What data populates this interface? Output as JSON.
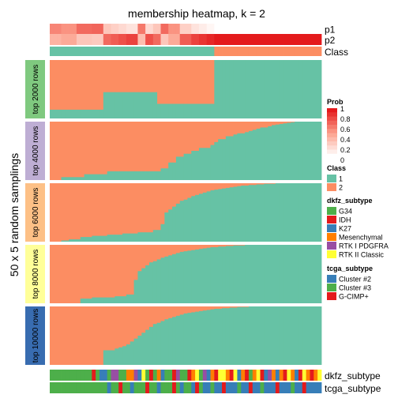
{
  "chart_data": {
    "type": "heatmap",
    "title": "membership heatmap, k = 2",
    "ylabel": "50 x 5 random samplings",
    "n_samples": 71,
    "p1": [
      0.6,
      0.6,
      0.6,
      0.55,
      0.55,
      0.55,
      0.55,
      0.7,
      0.7,
      0.7,
      0.7,
      0.72,
      0.72,
      0.72,
      0.3,
      0.3,
      0.25,
      0.25,
      0.2,
      0.2,
      0.15,
      0.15,
      0.15,
      0.65,
      0.65,
      0.2,
      0.2,
      0.3,
      0.3,
      0.7,
      0.7,
      0.55,
      0.55,
      0.55,
      0.25,
      0.25,
      0.25,
      0.15,
      0.15,
      0.1,
      0.1,
      0.05,
      0.05,
      0.0,
      0.0,
      0.0,
      0.0,
      0.0,
      0.0,
      0.0,
      0.0,
      0.0,
      0.0,
      0.0,
      0.0,
      0.0,
      0.0,
      0.0,
      0.0,
      0.0,
      0.0,
      0.0,
      0.0,
      0.0,
      0.0,
      0.0,
      0.0,
      0.0,
      0.0,
      0.0,
      0.0
    ],
    "p2": [
      0.4,
      0.4,
      0.4,
      0.45,
      0.45,
      0.45,
      0.45,
      0.3,
      0.3,
      0.3,
      0.3,
      0.28,
      0.28,
      0.28,
      0.7,
      0.7,
      0.75,
      0.75,
      0.8,
      0.8,
      0.85,
      0.85,
      0.85,
      0.35,
      0.35,
      0.8,
      0.8,
      0.7,
      0.7,
      0.3,
      0.3,
      0.45,
      0.45,
      0.45,
      0.75,
      0.75,
      0.75,
      0.85,
      0.85,
      0.9,
      0.9,
      0.95,
      0.95,
      1.0,
      1.0,
      1.0,
      1.0,
      1.0,
      1.0,
      1.0,
      1.0,
      1.0,
      1.0,
      1.0,
      1.0,
      1.0,
      1.0,
      1.0,
      1.0,
      1.0,
      1.0,
      1.0,
      1.0,
      1.0,
      1.0,
      1.0,
      1.0,
      1.0,
      1.0,
      1.0,
      1.0
    ],
    "class_split": 43,
    "row_labels": {
      "p1": "p1",
      "p2": "p2",
      "class": "Class"
    },
    "panels": [
      {
        "label": "top 2000 rows",
        "color": "#7fc97f",
        "boundary": [
          0.15,
          0.15,
          0.15,
          0.15,
          0.15,
          0.15,
          0.15,
          0.15,
          0.15,
          0.15,
          0.15,
          0.15,
          0.15,
          0.15,
          0.45,
          0.45,
          0.45,
          0.45,
          0.45,
          0.45,
          0.45,
          0.45,
          0.45,
          0.45,
          0.45,
          0.45,
          0.45,
          0.45,
          0.25,
          0.25,
          0.25,
          0.25,
          0.25,
          0.25,
          0.25,
          0.25,
          0.25,
          0.25,
          0.25,
          0.25,
          0.25,
          0.25,
          0.25,
          1,
          1,
          1,
          1,
          1,
          1,
          1,
          1,
          1,
          1,
          1,
          1,
          1,
          1,
          1,
          1,
          1,
          1,
          1,
          1,
          1,
          1,
          1,
          1,
          1,
          1,
          1,
          1
        ]
      },
      {
        "label": "top 4000 rows",
        "color": "#beaed4",
        "boundary": [
          0.0,
          0.0,
          0.0,
          0.05,
          0.05,
          0.05,
          0.05,
          0.05,
          0.05,
          0.1,
          0.1,
          0.1,
          0.1,
          0.1,
          0.1,
          0.15,
          0.15,
          0.15,
          0.15,
          0.15,
          0.15,
          0.15,
          0.15,
          0.15,
          0.15,
          0.15,
          0.15,
          0.15,
          0.15,
          0.2,
          0.2,
          0.3,
          0.3,
          0.4,
          0.4,
          0.45,
          0.45,
          0.5,
          0.5,
          0.55,
          0.55,
          0.55,
          0.6,
          0.65,
          0.7,
          0.7,
          0.75,
          0.75,
          0.78,
          0.8,
          0.8,
          0.82,
          0.84,
          0.86,
          0.88,
          0.9,
          0.9,
          0.92,
          0.94,
          0.95,
          0.96,
          0.97,
          0.98,
          0.99,
          1,
          1,
          1,
          1,
          1,
          1,
          1
        ]
      },
      {
        "label": "top 6000 rows",
        "color": "#fdc086",
        "boundary": [
          0.0,
          0.0,
          0.0,
          0.02,
          0.02,
          0.04,
          0.04,
          0.04,
          0.08,
          0.08,
          0.08,
          0.1,
          0.1,
          0.1,
          0.1,
          0.12,
          0.12,
          0.12,
          0.12,
          0.14,
          0.14,
          0.14,
          0.14,
          0.16,
          0.16,
          0.16,
          0.16,
          0.2,
          0.2,
          0.3,
          0.5,
          0.55,
          0.6,
          0.65,
          0.7,
          0.72,
          0.75,
          0.78,
          0.8,
          0.82,
          0.84,
          0.86,
          0.88,
          0.89,
          0.9,
          0.91,
          0.92,
          0.93,
          0.94,
          0.95,
          0.96,
          0.96,
          0.97,
          0.97,
          0.98,
          0.98,
          0.99,
          0.99,
          0.99,
          1,
          1,
          1,
          1,
          1,
          1,
          1,
          1,
          1,
          1,
          1,
          1
        ]
      },
      {
        "label": "top 8000 rows",
        "color": "#ffff99",
        "boundary": [
          0.0,
          0.0,
          0.0,
          0.0,
          0.0,
          0.0,
          0.0,
          0.0,
          0.08,
          0.08,
          0.08,
          0.1,
          0.1,
          0.1,
          0.1,
          0.1,
          0.1,
          0.12,
          0.12,
          0.12,
          0.15,
          0.15,
          0.4,
          0.55,
          0.6,
          0.65,
          0.7,
          0.72,
          0.75,
          0.78,
          0.8,
          0.82,
          0.84,
          0.86,
          0.88,
          0.89,
          0.9,
          0.91,
          0.92,
          0.93,
          0.94,
          0.95,
          0.96,
          0.96,
          0.97,
          0.97,
          0.98,
          0.98,
          0.99,
          0.99,
          0.99,
          1,
          1,
          1,
          1,
          1,
          1,
          1,
          1,
          1,
          1,
          1,
          1,
          1,
          1,
          1,
          1,
          1,
          1,
          1,
          1
        ]
      },
      {
        "label": "top 10000 rows",
        "color": "#386cb0",
        "boundary": [
          0.0,
          0.0,
          0.0,
          0.0,
          0.0,
          0.0,
          0.0,
          0.0,
          0.0,
          0.0,
          0.0,
          0.0,
          0.0,
          0.0,
          0.25,
          0.25,
          0.25,
          0.28,
          0.3,
          0.32,
          0.35,
          0.4,
          0.45,
          0.5,
          0.55,
          0.6,
          0.65,
          0.7,
          0.72,
          0.75,
          0.78,
          0.8,
          0.82,
          0.84,
          0.86,
          0.88,
          0.89,
          0.9,
          0.91,
          0.92,
          0.93,
          0.94,
          0.95,
          0.96,
          0.96,
          0.97,
          0.97,
          0.98,
          0.98,
          0.99,
          0.99,
          0.99,
          1,
          1,
          1,
          1,
          1,
          1,
          1,
          1,
          1,
          1,
          1,
          1,
          1,
          1,
          1,
          1,
          1,
          1,
          1
        ]
      }
    ],
    "dkfz_subtype": [
      0,
      0,
      0,
      0,
      0,
      0,
      0,
      0,
      0,
      0,
      0,
      1,
      0,
      2,
      2,
      0,
      4,
      4,
      0,
      0,
      3,
      3,
      4,
      2,
      5,
      0,
      1,
      0,
      3,
      2,
      0,
      0,
      1,
      4,
      0,
      0,
      1,
      3,
      5,
      0,
      4,
      2,
      3,
      1,
      5,
      5,
      3,
      1,
      5,
      2,
      3,
      1,
      0,
      3,
      5,
      1,
      2,
      4,
      3,
      2,
      3,
      1,
      5,
      3,
      2,
      1,
      5,
      3,
      1,
      3,
      5
    ],
    "tcga_subtype": [
      1,
      1,
      1,
      1,
      1,
      1,
      1,
      1,
      1,
      1,
      1,
      1,
      1,
      1,
      1,
      0,
      1,
      1,
      2,
      1,
      1,
      0,
      1,
      1,
      1,
      2,
      1,
      1,
      0,
      1,
      1,
      1,
      2,
      1,
      0,
      1,
      1,
      0,
      2,
      1,
      0,
      0,
      1,
      0,
      0,
      2,
      0,
      0,
      0,
      1,
      0,
      0,
      2,
      0,
      0,
      1,
      0,
      0,
      0,
      2,
      0,
      0,
      0,
      1,
      0,
      0,
      2,
      0,
      0,
      0,
      0
    ],
    "bottom_labels": {
      "dkfz": "dkfz_subtype",
      "tcga": "tcga_subtype"
    },
    "legend_prob": {
      "title": "Prob",
      "ticks": [
        "1",
        "0.8",
        "0.6",
        "0.4",
        "0.2",
        "0"
      ]
    },
    "legend_class": {
      "title": "Class",
      "entries": [
        {
          "label": "1",
          "color": "#66c2a5"
        },
        {
          "label": "2",
          "color": "#fc8d62"
        }
      ]
    },
    "legend_dkfz": {
      "title": "dkfz_subtype",
      "entries": [
        {
          "label": "G34",
          "color": "#4daf4a"
        },
        {
          "label": "IDH",
          "color": "#e41a1c"
        },
        {
          "label": "K27",
          "color": "#377eb8"
        },
        {
          "label": "Mesenchymal",
          "color": "#ff7f00"
        },
        {
          "label": "RTK I PDGFRA",
          "color": "#984ea3"
        },
        {
          "label": "RTK II Classic",
          "color": "#ffff33"
        }
      ]
    },
    "legend_tcga": {
      "title": "tcga_subtype",
      "entries": [
        {
          "label": "Cluster #2",
          "color": "#377eb8"
        },
        {
          "label": "Cluster #3",
          "color": "#4daf4a"
        },
        {
          "label": "G-CIMP+",
          "color": "#e41a1c"
        }
      ]
    },
    "colors": {
      "class1": "#66c2a5",
      "class2": "#fc8d62",
      "prob_low": "#ffffff",
      "prob_high": "#e41a1c"
    }
  }
}
